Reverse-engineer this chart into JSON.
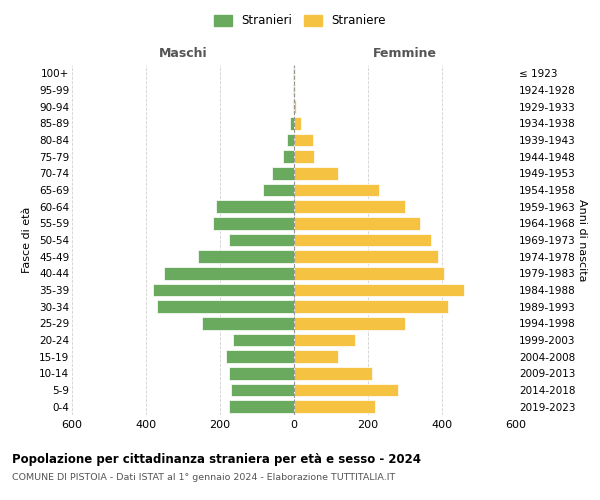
{
  "age_groups": [
    "100+",
    "95-99",
    "90-94",
    "85-89",
    "80-84",
    "75-79",
    "70-74",
    "65-69",
    "60-64",
    "55-59",
    "50-54",
    "45-49",
    "40-44",
    "35-39",
    "30-34",
    "25-29",
    "20-24",
    "15-19",
    "10-14",
    "5-9",
    "0-4"
  ],
  "birth_years": [
    "≤ 1923",
    "1924-1928",
    "1929-1933",
    "1934-1938",
    "1939-1943",
    "1944-1948",
    "1949-1953",
    "1954-1958",
    "1959-1963",
    "1964-1968",
    "1969-1973",
    "1974-1978",
    "1979-1983",
    "1984-1988",
    "1989-1993",
    "1994-1998",
    "1999-2003",
    "2004-2008",
    "2009-2013",
    "2014-2018",
    "2019-2023"
  ],
  "males": [
    2,
    2,
    4,
    10,
    20,
    30,
    60,
    85,
    210,
    220,
    175,
    260,
    350,
    380,
    370,
    250,
    165,
    185,
    175,
    170,
    175
  ],
  "females": [
    2,
    3,
    5,
    18,
    50,
    55,
    120,
    230,
    300,
    340,
    370,
    390,
    405,
    460,
    415,
    300,
    165,
    120,
    210,
    280,
    220
  ],
  "male_color": "#6aaa5e",
  "female_color": "#f5c242",
  "title": "Popolazione per cittadinanza straniera per età e sesso - 2024",
  "subtitle": "COMUNE DI PISTOIA - Dati ISTAT al 1° gennaio 2024 - Elaborazione TUTTITALIA.IT",
  "xlabel_left": "Maschi",
  "xlabel_right": "Femmine",
  "ylabel_left": "Fasce di età",
  "ylabel_right": "Anni di nascita",
  "legend_male": "Stranieri",
  "legend_female": "Straniere",
  "xlim": 600,
  "background_color": "#ffffff",
  "grid_color": "#cccccc"
}
